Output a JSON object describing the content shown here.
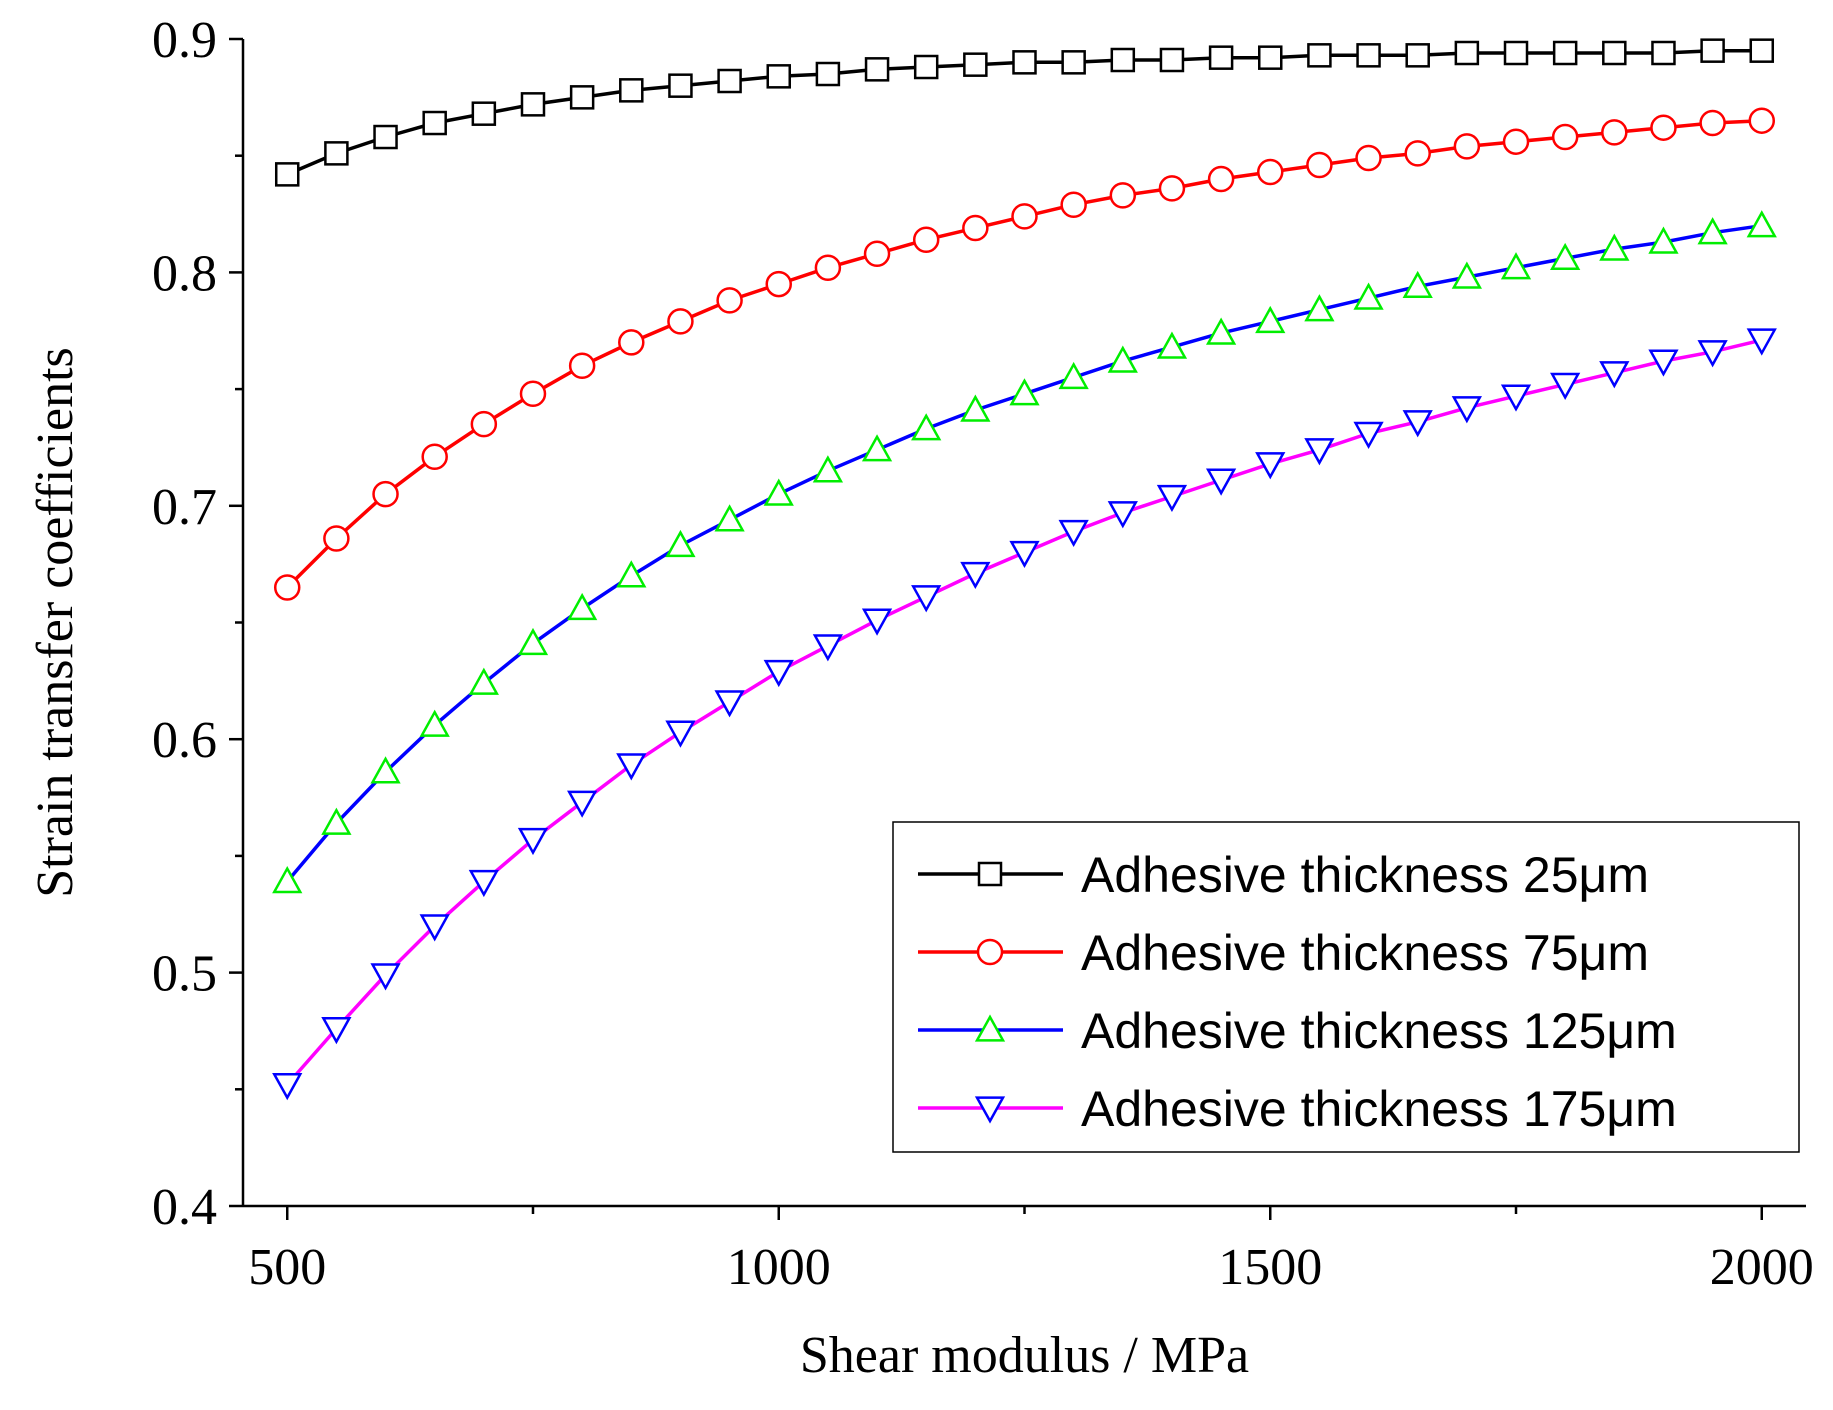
{
  "chart_data": {
    "type": "line",
    "title": "",
    "xlabel": "Shear modulus / MPa",
    "ylabel": "Strain transfer coefficients",
    "xlim": [
      455,
      2045
    ],
    "ylim": [
      0.4,
      0.9
    ],
    "xticks": [
      500,
      1000,
      1500,
      2000
    ],
    "xtick_labels": [
      "500",
      "1000",
      "1500",
      "2000"
    ],
    "xminor": [
      750,
      1250,
      1750
    ],
    "yticks": [
      0.4,
      0.5,
      0.6,
      0.7,
      0.8,
      0.9
    ],
    "ytick_labels": [
      "0.4",
      "0.5",
      "0.6",
      "0.7",
      "0.8",
      "0.9"
    ],
    "yminor": [
      0.45,
      0.55,
      0.65,
      0.75,
      0.85
    ],
    "grid": false,
    "legend_position": "bottom-right",
    "x": [
      500,
      550,
      600,
      650,
      700,
      750,
      800,
      850,
      900,
      950,
      1000,
      1050,
      1100,
      1150,
      1200,
      1250,
      1300,
      1350,
      1400,
      1450,
      1500,
      1550,
      1600,
      1650,
      1700,
      1750,
      1800,
      1850,
      1900,
      1950,
      2000
    ],
    "series": [
      {
        "name": "Adhesive thickness 25μm",
        "line_color": "#000000",
        "marker": "square",
        "marker_color": "#000000",
        "values": [
          0.842,
          0.851,
          0.858,
          0.864,
          0.868,
          0.872,
          0.875,
          0.878,
          0.88,
          0.882,
          0.884,
          0.885,
          0.887,
          0.888,
          0.889,
          0.89,
          0.89,
          0.891,
          0.891,
          0.892,
          0.892,
          0.893,
          0.893,
          0.893,
          0.894,
          0.894,
          0.894,
          0.894,
          0.894,
          0.895,
          0.895
        ]
      },
      {
        "name": "Adhesive thickness 75μm",
        "line_color": "#ff0000",
        "marker": "circle",
        "marker_color": "#ff0000",
        "values": [
          0.665,
          0.686,
          0.705,
          0.721,
          0.735,
          0.748,
          0.76,
          0.77,
          0.779,
          0.788,
          0.795,
          0.802,
          0.808,
          0.814,
          0.819,
          0.824,
          0.829,
          0.833,
          0.836,
          0.84,
          0.843,
          0.846,
          0.849,
          0.851,
          0.854,
          0.856,
          0.858,
          0.86,
          0.862,
          0.864,
          0.865
        ]
      },
      {
        "name": "Adhesive thickness 125μm",
        "line_color": "#0000ff",
        "marker": "triangle-up",
        "marker_color": "#00ee00",
        "values": [
          0.539,
          0.564,
          0.586,
          0.606,
          0.624,
          0.641,
          0.656,
          0.67,
          0.683,
          0.694,
          0.705,
          0.715,
          0.724,
          0.733,
          0.741,
          0.748,
          0.755,
          0.762,
          0.768,
          0.774,
          0.779,
          0.784,
          0.789,
          0.794,
          0.798,
          0.802,
          0.806,
          0.81,
          0.813,
          0.817,
          0.82
        ]
      },
      {
        "name": "Adhesive thickness 175μm",
        "line_color": "#ff00ff",
        "marker": "triangle-down",
        "marker_color": "#0000ff",
        "values": [
          0.452,
          0.476,
          0.499,
          0.52,
          0.539,
          0.557,
          0.573,
          0.589,
          0.603,
          0.616,
          0.629,
          0.64,
          0.651,
          0.661,
          0.671,
          0.68,
          0.689,
          0.697,
          0.704,
          0.711,
          0.718,
          0.724,
          0.731,
          0.736,
          0.742,
          0.747,
          0.752,
          0.757,
          0.762,
          0.766,
          0.771
        ]
      }
    ]
  }
}
